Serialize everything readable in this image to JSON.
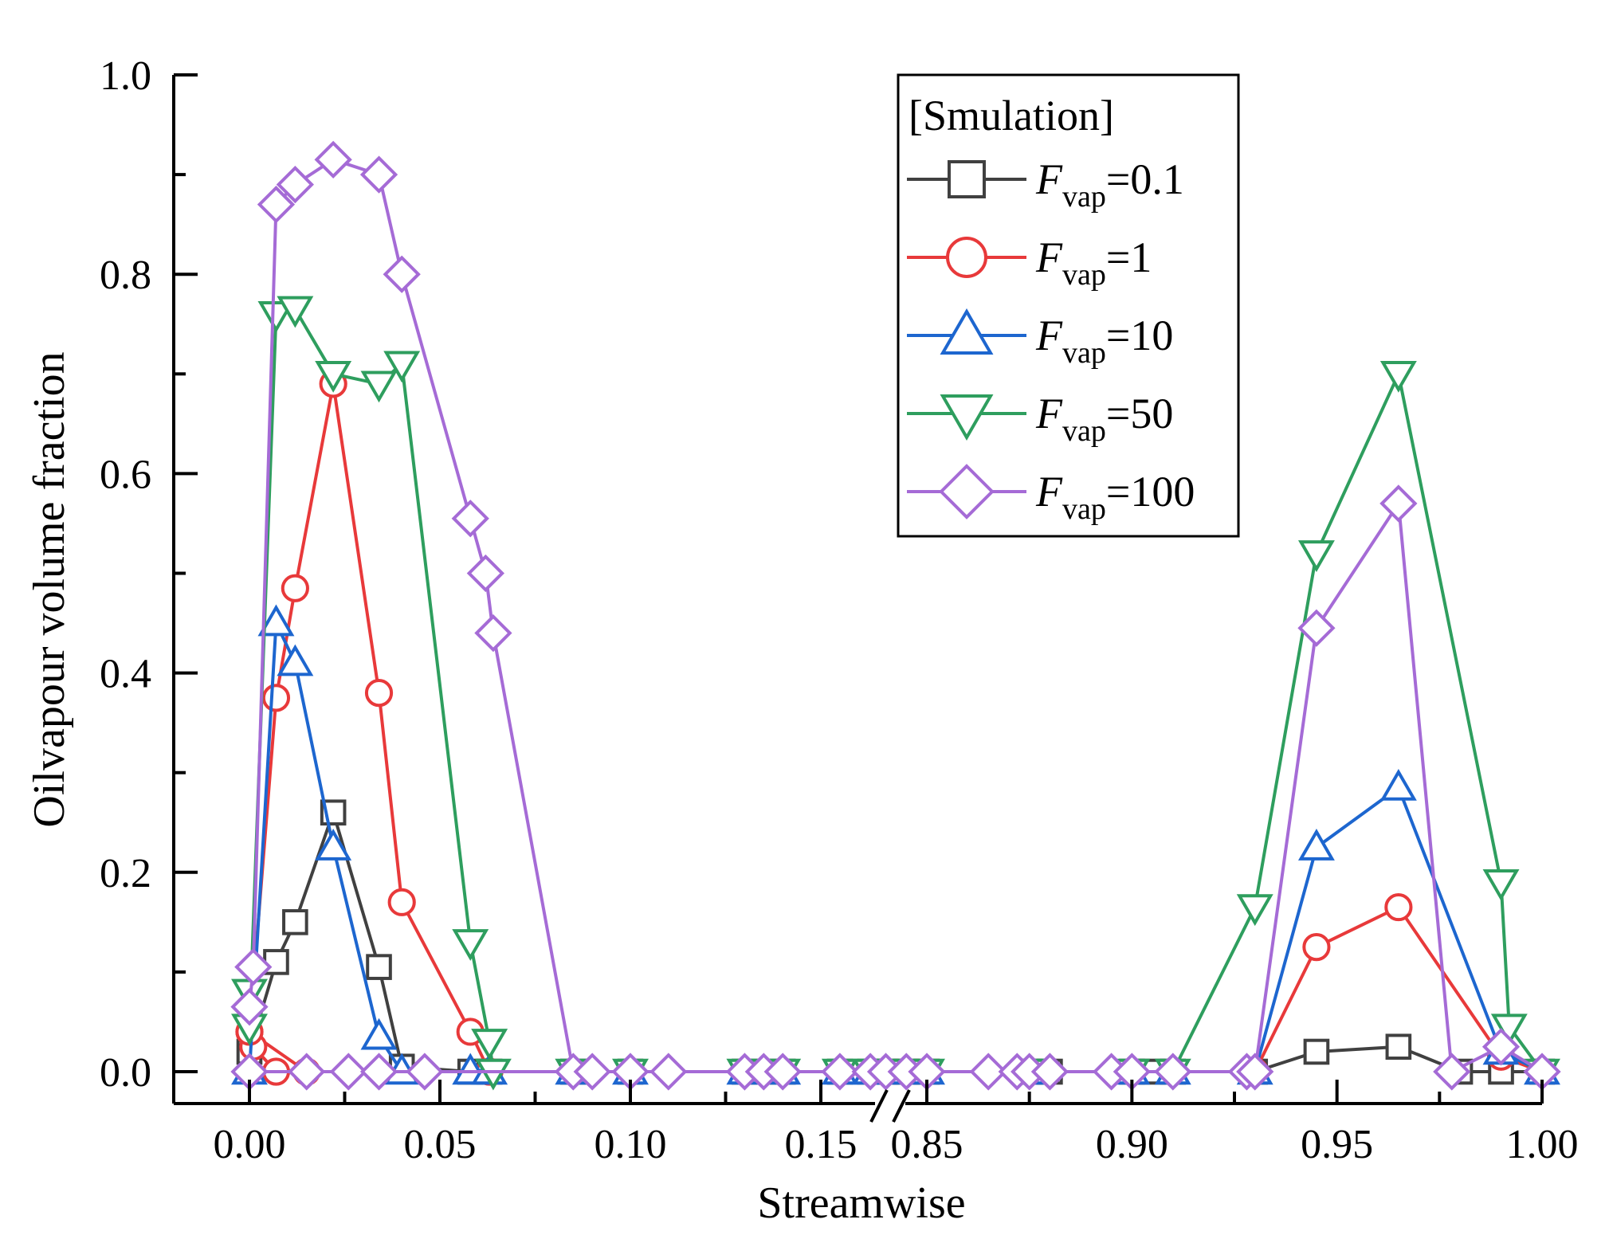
{
  "chart_data": {
    "type": "line",
    "title": "",
    "xlabel": "Streamwise",
    "ylabel": "Oilvapour volume fraction",
    "ylim": [
      0,
      1.0
    ],
    "y_ticks": [
      0.0,
      0.2,
      0.4,
      0.6,
      0.8,
      1.0
    ],
    "y_tick_labels": [
      "0.0",
      "0.2",
      "0.4",
      "0.6",
      "0.8",
      "1.0"
    ],
    "x_axis_break": {
      "left_range": [
        -0.02,
        0.16
      ],
      "right_range": [
        0.84,
        1.0
      ]
    },
    "x_ticks": [
      0.0,
      0.05,
      0.1,
      0.15,
      0.85,
      0.9,
      0.95,
      1.0
    ],
    "x_tick_labels": [
      "0.00",
      "0.05",
      "0.10",
      "0.15",
      "0.85",
      "0.90",
      "0.95",
      "1.00"
    ],
    "legend": {
      "title": "[Smulation]",
      "var": "F",
      "sub": "vap",
      "position": "top-right"
    },
    "series": [
      {
        "name": "Fvap=0.1",
        "value_label": "=0.1",
        "color": "#404040",
        "marker": "square",
        "points": [
          [
            0.0,
            0.02
          ],
          [
            0.007,
            0.11
          ],
          [
            0.012,
            0.15
          ],
          [
            0.022,
            0.26
          ],
          [
            0.034,
            0.105
          ],
          [
            0.04,
            0.005
          ],
          [
            0.058,
            0.0
          ],
          [
            0.063,
            0.0
          ],
          [
            0.085,
            0.0
          ],
          [
            0.1,
            0.0
          ],
          [
            0.13,
            0.0
          ],
          [
            0.14,
            0.0
          ],
          [
            0.155,
            0.0
          ],
          [
            0.163,
            0.0
          ],
          [
            0.84,
            0.0
          ],
          [
            0.845,
            0.0
          ],
          [
            0.85,
            0.0
          ],
          [
            0.875,
            0.0
          ],
          [
            0.88,
            0.0
          ],
          [
            0.9,
            0.0
          ],
          [
            0.905,
            0.0
          ],
          [
            0.91,
            0.0
          ],
          [
            0.93,
            0.0
          ],
          [
            0.945,
            0.02
          ],
          [
            0.965,
            0.025
          ],
          [
            0.98,
            0.0
          ],
          [
            0.99,
            0.0
          ],
          [
            1.0,
            0.0
          ]
        ]
      },
      {
        "name": "Fvap=1",
        "value_label": "=1",
        "color": "#e8393a",
        "marker": "circle",
        "points": [
          [
            0.0,
            0.04
          ],
          [
            0.001,
            0.025
          ],
          [
            0.007,
            0.0
          ],
          [
            0.015,
            0.0
          ],
          [
            0.0,
            0.04
          ],
          [
            0.007,
            0.375
          ],
          [
            0.012,
            0.485
          ],
          [
            0.022,
            0.69
          ],
          [
            0.034,
            0.38
          ],
          [
            0.04,
            0.17
          ],
          [
            0.058,
            0.04
          ],
          [
            0.063,
            0.0
          ],
          [
            0.085,
            0.0
          ],
          [
            0.1,
            0.0
          ],
          [
            0.13,
            0.0
          ],
          [
            0.14,
            0.0
          ],
          [
            0.155,
            0.0
          ],
          [
            0.163,
            0.0
          ],
          [
            0.84,
            0.0
          ],
          [
            0.85,
            0.0
          ],
          [
            0.875,
            0.0
          ],
          [
            0.9,
            0.0
          ],
          [
            0.91,
            0.0
          ],
          [
            0.93,
            0.0
          ],
          [
            0.945,
            0.125
          ],
          [
            0.965,
            0.165
          ],
          [
            0.99,
            0.015
          ],
          [
            1.0,
            0.0
          ]
        ]
      },
      {
        "name": "Fvap=10",
        "value_label": "=10",
        "color": "#1d66cf",
        "marker": "triangle-up",
        "points": [
          [
            0.0,
            0.0
          ],
          [
            0.007,
            0.45
          ],
          [
            0.012,
            0.41
          ],
          [
            0.022,
            0.225
          ],
          [
            0.034,
            0.035
          ],
          [
            0.04,
            0.0
          ],
          [
            0.058,
            0.0
          ],
          [
            0.063,
            0.0
          ],
          [
            0.085,
            0.0
          ],
          [
            0.1,
            0.0
          ],
          [
            0.13,
            0.0
          ],
          [
            0.14,
            0.0
          ],
          [
            0.155,
            0.0
          ],
          [
            0.163,
            0.0
          ],
          [
            0.84,
            0.0
          ],
          [
            0.85,
            0.0
          ],
          [
            0.875,
            0.0
          ],
          [
            0.9,
            0.0
          ],
          [
            0.91,
            0.0
          ],
          [
            0.93,
            0.0
          ],
          [
            0.945,
            0.225
          ],
          [
            0.965,
            0.285
          ],
          [
            0.99,
            0.02
          ],
          [
            1.0,
            0.0
          ]
        ]
      },
      {
        "name": "Fvap=50",
        "value_label": "=50",
        "color": "#2e9e5e",
        "marker": "triangle-down",
        "points": [
          [
            0.0,
            0.08
          ],
          [
            0.0,
            0.045
          ],
          [
            0.007,
            0.76
          ],
          [
            0.012,
            0.765
          ],
          [
            0.022,
            0.7
          ],
          [
            0.034,
            0.69
          ],
          [
            0.04,
            0.71
          ],
          [
            0.058,
            0.13
          ],
          [
            0.063,
            0.03
          ],
          [
            0.064,
            0.0
          ],
          [
            0.085,
            0.0
          ],
          [
            0.1,
            0.0
          ],
          [
            0.13,
            0.0
          ],
          [
            0.14,
            0.0
          ],
          [
            0.155,
            0.0
          ],
          [
            0.163,
            0.0
          ],
          [
            0.84,
            0.0
          ],
          [
            0.85,
            0.0
          ],
          [
            0.875,
            0.0
          ],
          [
            0.9,
            0.0
          ],
          [
            0.91,
            0.0
          ],
          [
            0.93,
            0.165
          ],
          [
            0.945,
            0.52
          ],
          [
            0.965,
            0.7
          ],
          [
            0.99,
            0.19
          ],
          [
            0.992,
            0.045
          ],
          [
            1.0,
            0.0
          ]
        ]
      },
      {
        "name": "Fvap=100",
        "value_label": "=100",
        "color": "#a56bd6",
        "marker": "diamond",
        "points": [
          [
            0.0,
            0.065
          ],
          [
            0.001,
            0.105
          ],
          [
            0.007,
            0.87
          ],
          [
            0.012,
            0.89
          ],
          [
            0.022,
            0.915
          ],
          [
            0.034,
            0.9
          ],
          [
            0.04,
            0.8
          ],
          [
            0.058,
            0.555
          ],
          [
            0.062,
            0.5
          ],
          [
            0.064,
            0.44
          ],
          [
            0.085,
            0.0
          ],
          [
            0.09,
            0.0
          ],
          [
            0.1,
            0.0
          ],
          [
            0.11,
            0.0
          ],
          [
            0.13,
            0.0
          ],
          [
            0.135,
            0.0
          ],
          [
            0.14,
            0.0
          ],
          [
            0.155,
            0.0
          ],
          [
            0.163,
            0.0
          ],
          [
            0.84,
            0.0
          ],
          [
            0.845,
            0.0
          ],
          [
            0.85,
            0.0
          ],
          [
            0.865,
            0.0
          ],
          [
            0.872,
            0.0
          ],
          [
            0.875,
            0.0
          ],
          [
            0.88,
            0.0
          ],
          [
            0.895,
            0.0
          ],
          [
            0.9,
            0.0
          ],
          [
            0.91,
            0.0
          ],
          [
            0.928,
            0.0
          ],
          [
            0.93,
            0.0
          ],
          [
            0.945,
            0.445
          ],
          [
            0.965,
            0.57
          ],
          [
            0.978,
            0.0
          ],
          [
            0.99,
            0.025
          ],
          [
            1.0,
            0.0
          ],
          [
            0.0,
            0.0
          ],
          [
            0.015,
            0.0
          ],
          [
            0.026,
            0.0
          ],
          [
            0.034,
            0.0
          ],
          [
            0.046,
            0.0
          ]
        ]
      }
    ]
  }
}
